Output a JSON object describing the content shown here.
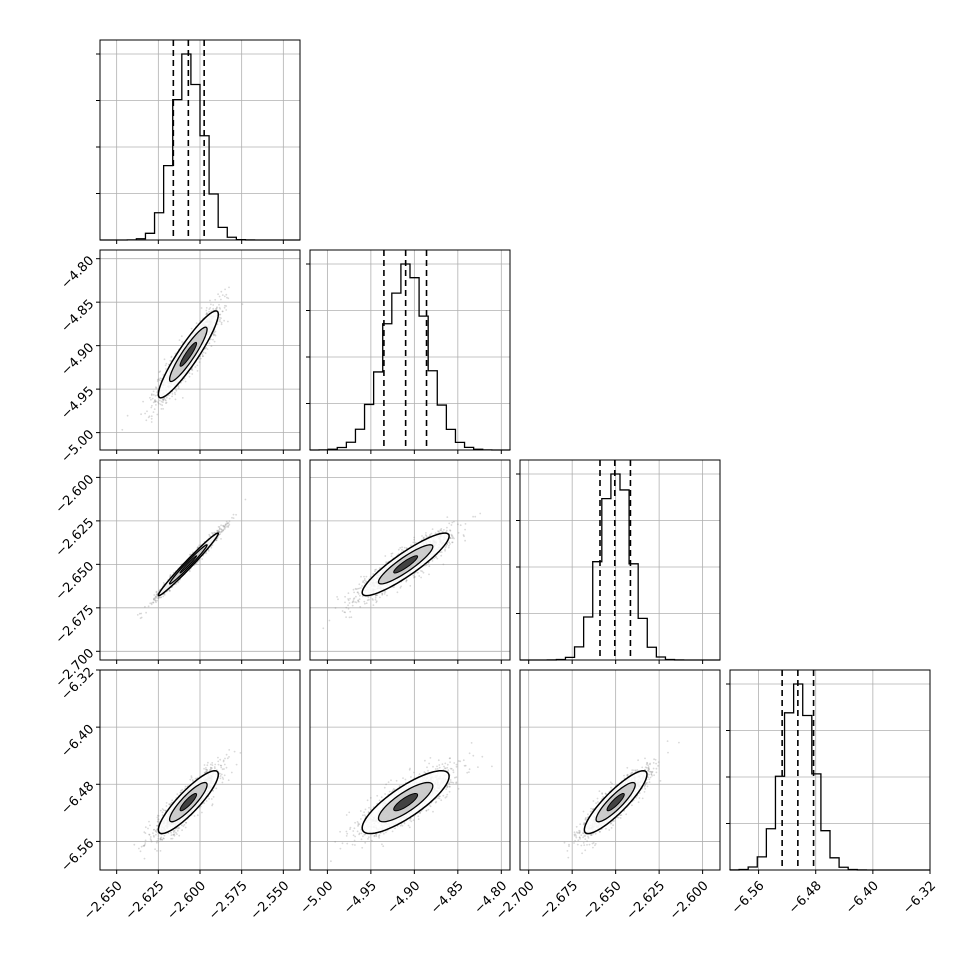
{
  "chart_data": {
    "type": "corner",
    "title": "",
    "parameters": 4,
    "panel_frame": "square",
    "grid": true,
    "hist_quantile_lines": "dashed",
    "scatter_color": "#808080",
    "hist_color": "#000000",
    "params": [
      {
        "index": 0,
        "range": [
          -2.66,
          -2.54
        ],
        "ticks": [
          -2.65,
          -2.625,
          -2.6,
          -2.575,
          -2.55
        ],
        "tick_labels": [
          "−2.650",
          "−2.625",
          "−2.600",
          "−2.575",
          "−2.550"
        ],
        "mean": -2.607,
        "sd": 0.009,
        "quantiles": [
          -2.616,
          -2.607,
          -2.5975
        ]
      },
      {
        "index": 1,
        "range": [
          -5.02,
          -4.79
        ],
        "ticks": [
          -5.0,
          -4.95,
          -4.9,
          -4.85,
          -4.8
        ],
        "tick_labels": [
          "−5.00",
          "−4.95",
          "−4.90",
          "−4.85",
          "−4.80"
        ],
        "mean": -4.91,
        "sd": 0.025,
        "quantiles": [
          -4.935,
          -4.91,
          -4.886
        ]
      },
      {
        "index": 2,
        "range": [
          -2.705,
          -2.59
        ],
        "ticks": [
          -2.7,
          -2.675,
          -2.65,
          -2.625,
          -2.6
        ],
        "tick_labels": [
          "−2.700",
          "−2.675",
          "−2.650",
          "−2.625",
          "−2.600"
        ],
        "mean": -2.65,
        "sd": 0.009,
        "quantiles": [
          -2.659,
          -2.6505,
          -2.6415
        ]
      },
      {
        "index": 3,
        "range": [
          -6.6,
          -6.32
        ],
        "ticks": [
          -6.56,
          -6.48,
          -6.4,
          -6.32
        ],
        "tick_labels": [
          "−6.56",
          "−6.48",
          "−6.40",
          "−6.32"
        ],
        "mean": -6.505,
        "sd": 0.022,
        "quantiles": [
          -6.527,
          -6.505,
          -6.483
        ]
      }
    ],
    "correlations": [
      {
        "i": 1,
        "j": 0,
        "rho": 0.92
      },
      {
        "i": 2,
        "j": 0,
        "rho": 0.985
      },
      {
        "i": 2,
        "j": 1,
        "rho": 0.9
      },
      {
        "i": 3,
        "j": 0,
        "rho": 0.88
      },
      {
        "i": 3,
        "j": 1,
        "rho": 0.82
      },
      {
        "i": 3,
        "j": 2,
        "rho": 0.88
      }
    ]
  }
}
